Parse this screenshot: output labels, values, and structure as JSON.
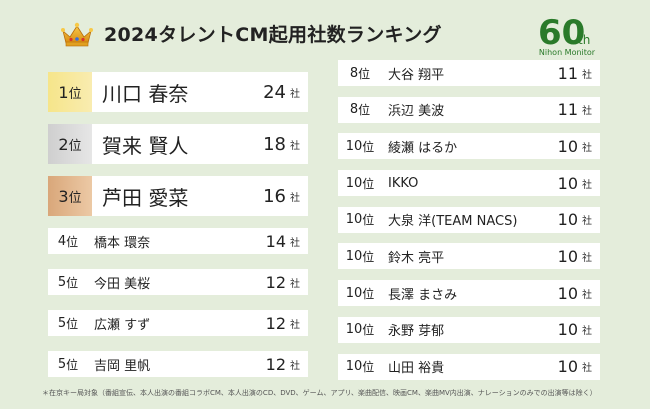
{
  "title": "2024タレントCM起用社数ランキング",
  "logo": {
    "number": "60",
    "suffix": "th",
    "brand": "Nihon Monitor"
  },
  "rank_unit": "位",
  "count_unit": "社",
  "left_top": [
    {
      "rank": "1",
      "name": "川口 春奈",
      "count": "24"
    },
    {
      "rank": "2",
      "name": "賀来 賢人",
      "count": "18"
    },
    {
      "rank": "3",
      "name": "芦田 愛菜",
      "count": "16"
    }
  ],
  "left_rest": [
    {
      "rank": "4",
      "name": "橋本 環奈",
      "count": "14"
    },
    {
      "rank": "5",
      "name": "今田 美桜",
      "count": "12"
    },
    {
      "rank": "5",
      "name": "広瀬 すず",
      "count": "12"
    },
    {
      "rank": "5",
      "name": "吉岡 里帆",
      "count": "12"
    }
  ],
  "right": [
    {
      "rank": "8",
      "name": "大谷 翔平",
      "count": "11"
    },
    {
      "rank": "8",
      "name": "浜辺 美波",
      "count": "11"
    },
    {
      "rank": "10",
      "name": "綾瀬 はるか",
      "count": "10"
    },
    {
      "rank": "10",
      "name": "IKKO",
      "count": "10"
    },
    {
      "rank": "10",
      "name": "大泉 洋(TEAM NACS)",
      "count": "10"
    },
    {
      "rank": "10",
      "name": "鈴木 亮平",
      "count": "10"
    },
    {
      "rank": "10",
      "name": "長澤 まさみ",
      "count": "10"
    },
    {
      "rank": "10",
      "name": "永野 芽郁",
      "count": "10"
    },
    {
      "rank": "10",
      "name": "山田 裕貴",
      "count": "10"
    }
  ],
  "footnote": "＊在京キー局対象（番組宣伝、本人出演の番組コラボCM、本人出演のCD、DVD、ゲーム、アプリ、楽曲配信、映画CM、楽曲MV内出演、ナレーションのみでの出演等は除く）",
  "colors": {
    "background": "#e4eddb",
    "gold": "#f6e58a",
    "silver": "#cfcfcf",
    "bronze": "#d9a77a",
    "logo_green": "#2a7a2a"
  }
}
